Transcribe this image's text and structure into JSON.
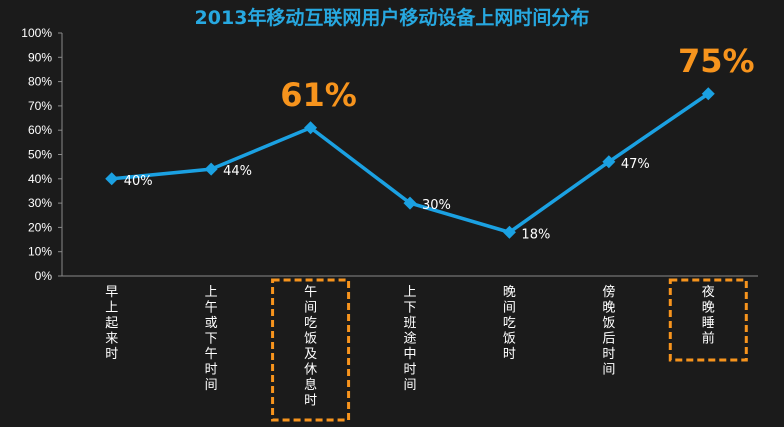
{
  "colors": {
    "background": "#1b1b1b",
    "title": "#27a8e0",
    "line": "#1ba1e2",
    "marker": "#1ba1e2",
    "highlight": "#f7941d",
    "text": "#ffffff"
  },
  "chart_data": {
    "type": "line",
    "title": "2013年移动互联网用户移动设备上网时间分布",
    "xlabel": "",
    "ylabel": "",
    "ylim": [
      0,
      100
    ],
    "yticks": [
      "0%",
      "10%",
      "20%",
      "30%",
      "40%",
      "50%",
      "60%",
      "70%",
      "80%",
      "90%",
      "100%"
    ],
    "grid": false,
    "categories": [
      "早上起来时",
      "上午或下午时间",
      "午间吃饭及休息时",
      "上下班途中时间",
      "晚间吃饭时",
      "傍晚饭后时间",
      "夜晚睡前"
    ],
    "series": [
      {
        "values": [
          40,
          44,
          61,
          30,
          18,
          47,
          75
        ]
      }
    ],
    "data_labels": [
      "40%",
      "44%",
      "61%",
      "30%",
      "18%",
      "47%",
      "75%"
    ],
    "highlighted_labels": [
      2,
      6
    ],
    "highlighted_categories": [
      2,
      6
    ]
  }
}
